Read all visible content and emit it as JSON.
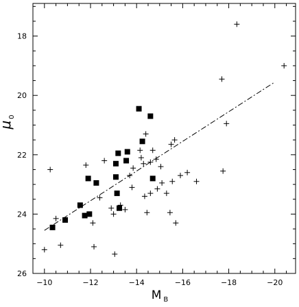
{
  "chart_data": {
    "type": "scatter",
    "title": "",
    "xlabel": "M",
    "xlabel_sub": "B",
    "ylabel": "μ",
    "ylabel_sub": "0",
    "xlim": [
      -9.5,
      -20.9
    ],
    "ylim": [
      26,
      16.9
    ],
    "x_inverted": true,
    "y_inverted": true,
    "x_ticks": [
      -10,
      -12,
      -14,
      -16,
      -18,
      -20
    ],
    "y_ticks": [
      18,
      20,
      22,
      24,
      26
    ],
    "x_minor_step": 0.5,
    "y_minor_step": 0.5,
    "grid": false,
    "legend": "none",
    "fit_line": {
      "style": "dashed",
      "x": [
        -10,
        -20
      ],
      "y": [
        24.55,
        19.55
      ]
    },
    "series": [
      {
        "marker": "filled-square",
        "color": "#000000",
        "points": [
          [
            -10.35,
            24.45
          ],
          [
            -10.9,
            24.2
          ],
          [
            -11.55,
            23.7
          ],
          [
            -11.75,
            24.05
          ],
          [
            -11.95,
            24.0
          ],
          [
            -11.9,
            22.8
          ],
          [
            -12.25,
            22.95
          ],
          [
            -13.1,
            22.75
          ],
          [
            -13.1,
            22.3
          ],
          [
            -13.2,
            21.95
          ],
          [
            -13.15,
            23.3
          ],
          [
            -13.25,
            23.8
          ],
          [
            -13.55,
            22.2
          ],
          [
            -13.6,
            21.9
          ],
          [
            -14.1,
            20.45
          ],
          [
            -14.25,
            21.55
          ],
          [
            -14.6,
            20.7
          ],
          [
            -14.7,
            22.8
          ]
        ]
      },
      {
        "marker": "plus",
        "color": "#000000",
        "points": [
          [
            -10.0,
            25.2
          ],
          [
            -10.25,
            22.5
          ],
          [
            -10.5,
            24.15
          ],
          [
            -10.7,
            25.05
          ],
          [
            -11.8,
            22.35
          ],
          [
            -12.1,
            24.3
          ],
          [
            -12.15,
            25.1
          ],
          [
            -12.4,
            23.45
          ],
          [
            -12.6,
            22.2
          ],
          [
            -12.9,
            23.8
          ],
          [
            -13.0,
            24.0
          ],
          [
            -13.05,
            25.35
          ],
          [
            -13.3,
            23.7
          ],
          [
            -13.5,
            23.85
          ],
          [
            -13.7,
            22.7
          ],
          [
            -13.8,
            23.1
          ],
          [
            -13.85,
            22.45
          ],
          [
            -14.15,
            21.85
          ],
          [
            -14.2,
            22.1
          ],
          [
            -14.3,
            22.3
          ],
          [
            -14.35,
            23.4
          ],
          [
            -14.4,
            21.3
          ],
          [
            -14.45,
            23.95
          ],
          [
            -14.6,
            22.25
          ],
          [
            -14.6,
            23.3
          ],
          [
            -14.7,
            21.85
          ],
          [
            -14.85,
            22.15
          ],
          [
            -14.9,
            23.15
          ],
          [
            -15.05,
            22.4
          ],
          [
            -15.1,
            22.95
          ],
          [
            -15.3,
            23.3
          ],
          [
            -15.45,
            23.95
          ],
          [
            -15.5,
            21.65
          ],
          [
            -15.55,
            22.9
          ],
          [
            -15.65,
            21.5
          ],
          [
            -15.7,
            24.3
          ],
          [
            -15.9,
            22.7
          ],
          [
            -16.2,
            22.6
          ],
          [
            -16.6,
            22.9
          ],
          [
            -17.7,
            19.45
          ],
          [
            -17.75,
            22.55
          ],
          [
            -17.9,
            20.95
          ],
          [
            -18.35,
            17.6
          ],
          [
            -20.4,
            19.0
          ]
        ]
      }
    ]
  }
}
